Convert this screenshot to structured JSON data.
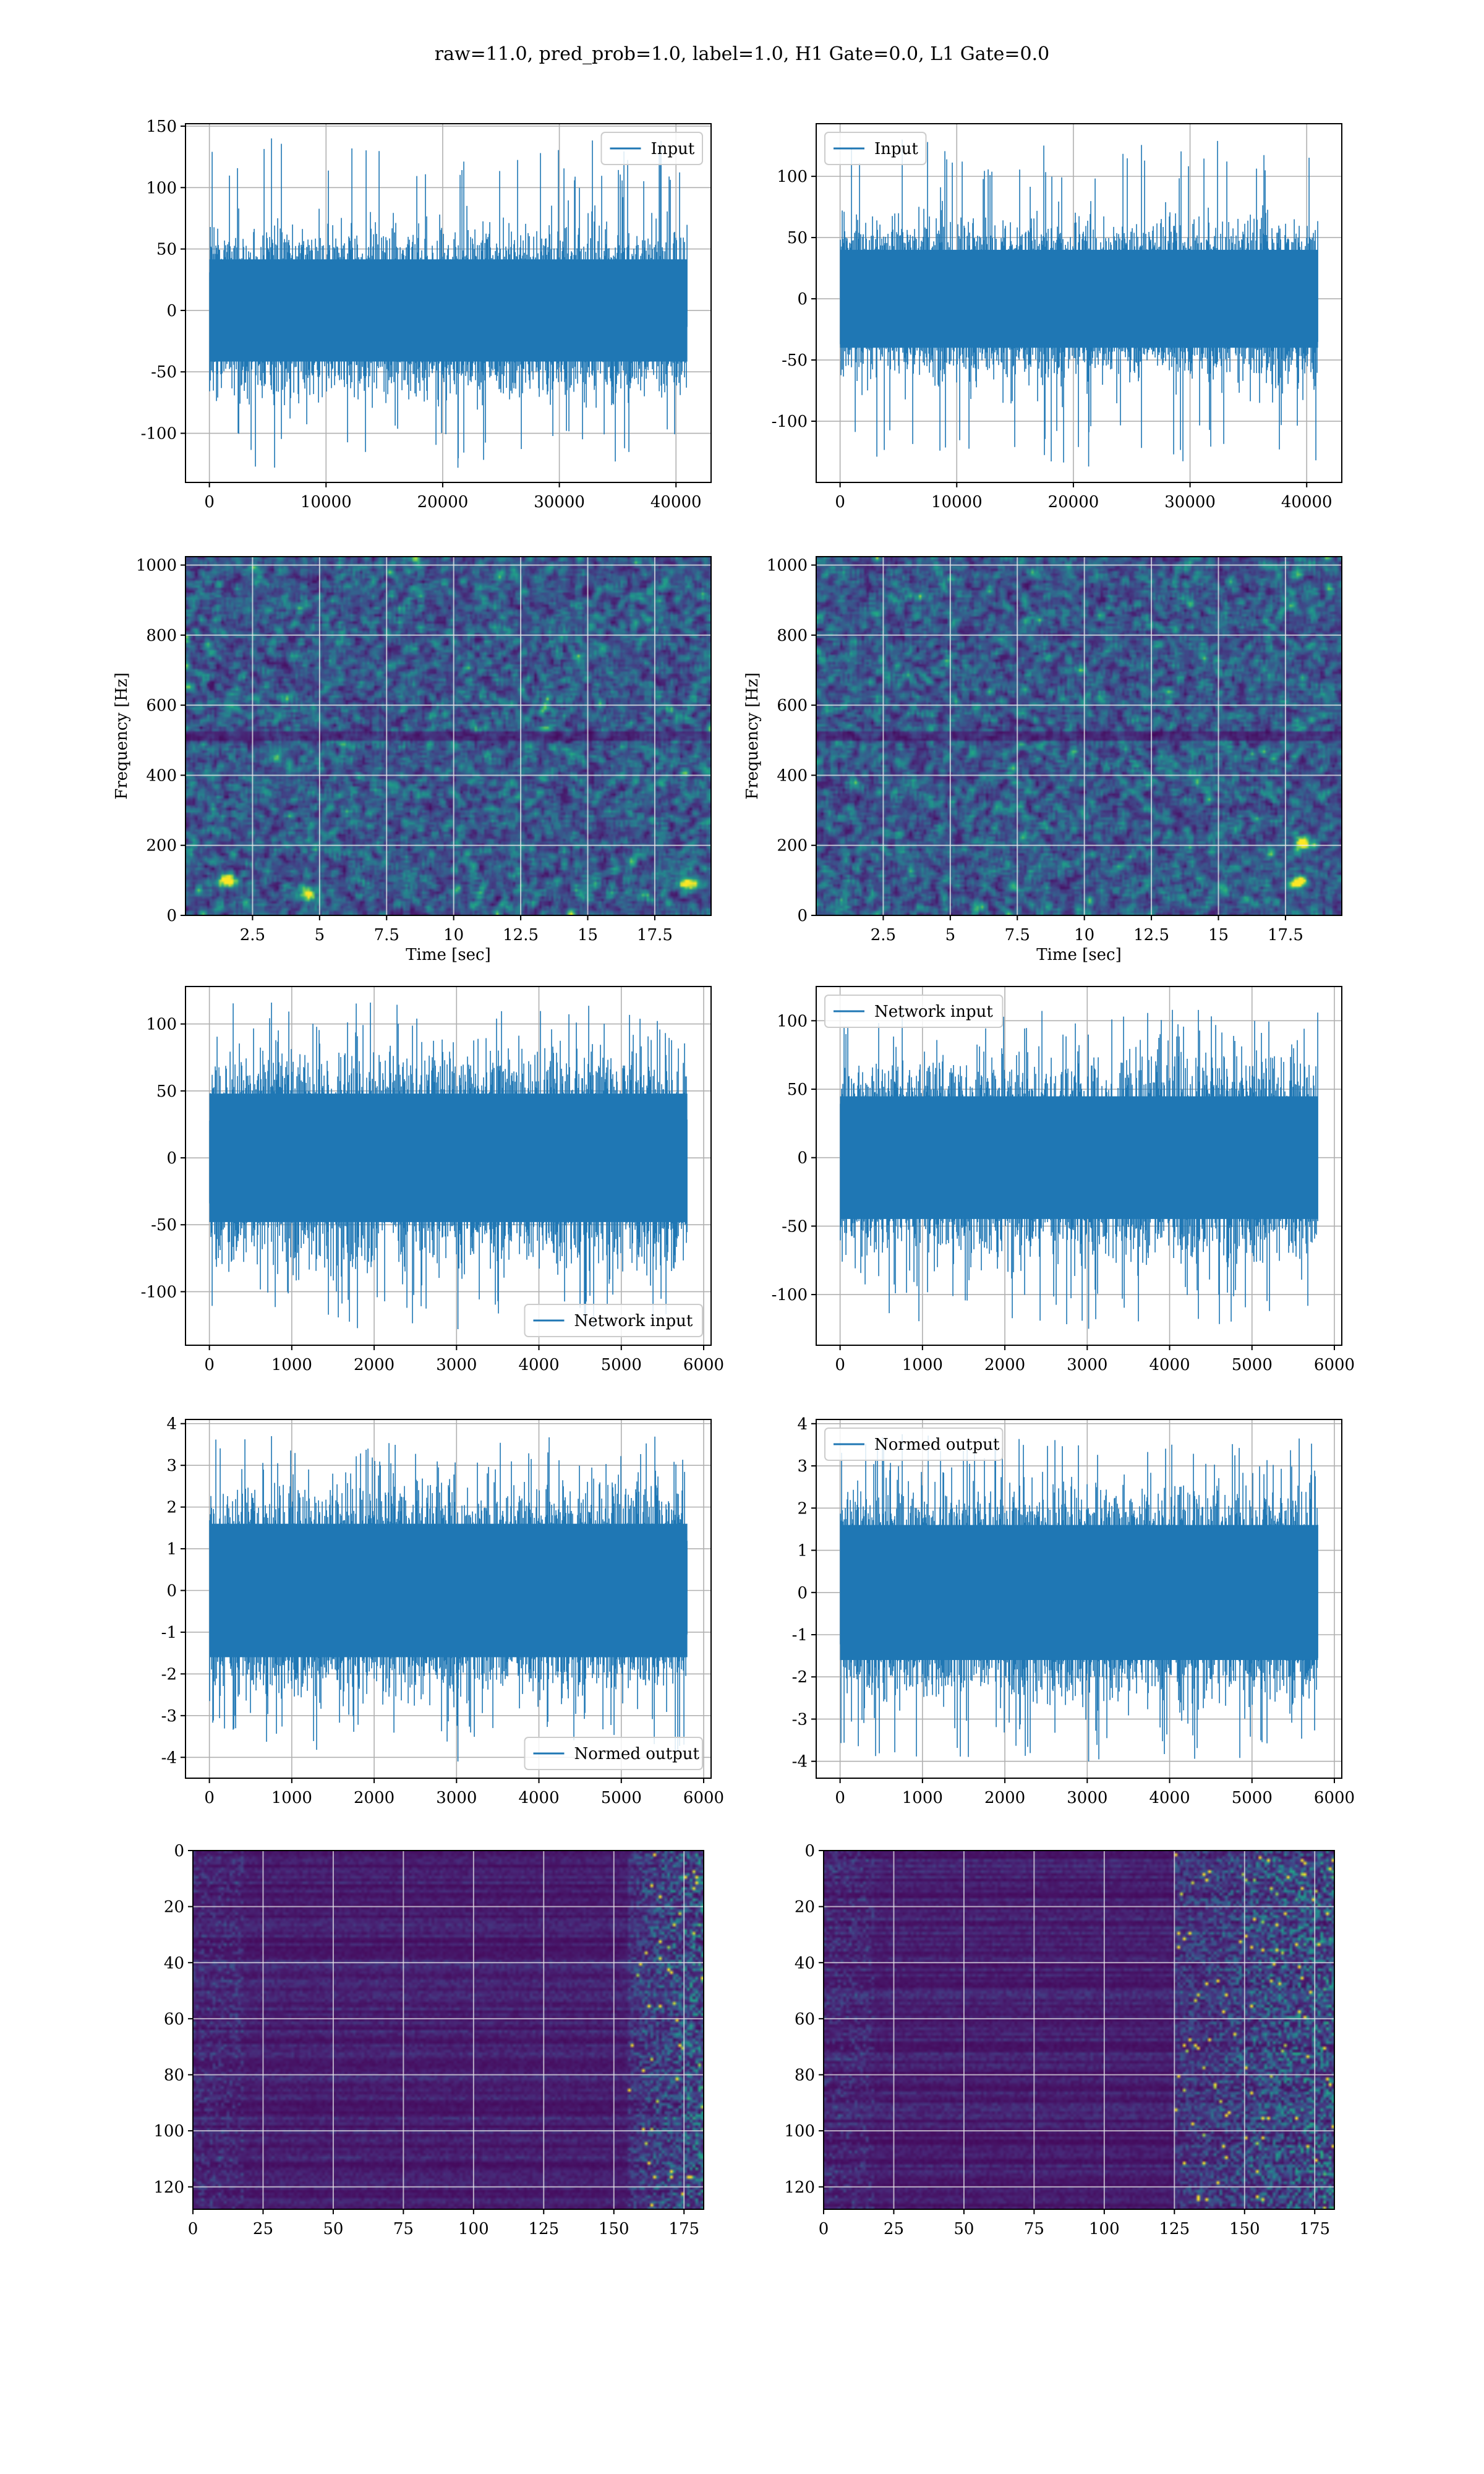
{
  "figure": {
    "suptitle": "raw=11.0, pred_prob=1.0, label=1.0, H1 Gate=0.0, L1 Gate=0.0"
  },
  "chart_data": [
    {
      "id": "input-h1",
      "type": "line",
      "x": [
        0,
        40960
      ],
      "series": [
        {
          "name": "Input",
          "color": "#1f77b4",
          "kind": "noise",
          "n": 40960,
          "sigma": 26,
          "y_min": -128,
          "y_max": 140
        }
      ],
      "xlim": [
        -2048,
        43008
      ],
      "ylim": [
        -140,
        152
      ],
      "xticks": [
        0,
        10000,
        20000,
        30000,
        40000
      ],
      "yticks": [
        -100,
        -50,
        0,
        50,
        100,
        150
      ],
      "legend": "upper right",
      "grid": true
    },
    {
      "id": "input-l1",
      "type": "line",
      "x": [
        0,
        40960
      ],
      "series": [
        {
          "name": "Input",
          "color": "#1f77b4",
          "kind": "noise",
          "n": 40960,
          "sigma": 25,
          "y_min": -137,
          "y_max": 130
        }
      ],
      "xlim": [
        -2048,
        43008
      ],
      "ylim": [
        -150,
        143
      ],
      "xticks": [
        0,
        10000,
        20000,
        30000,
        40000
      ],
      "yticks": [
        -100,
        -50,
        0,
        50,
        100
      ],
      "legend": "upper left",
      "grid": true
    },
    {
      "id": "spectrogram-h1",
      "type": "heatmap",
      "colormap": "viridis",
      "xlim": [
        0,
        19.6
      ],
      "ylim": [
        0,
        1024
      ],
      "xticks": [
        2.5,
        5.0,
        7.5,
        10.0,
        12.5,
        15.0,
        17.5
      ],
      "yticks": [
        0,
        200,
        400,
        600,
        800,
        1000
      ],
      "xlabel": "Time [sec]",
      "ylabel": "Frequency [Hz]",
      "hot_spots": [
        [
          1.5,
          95
        ],
        [
          4.5,
          60
        ],
        [
          18.8,
          90
        ]
      ],
      "grid": true
    },
    {
      "id": "spectrogram-l1",
      "type": "heatmap",
      "colormap": "viridis",
      "xlim": [
        0,
        19.6
      ],
      "ylim": [
        0,
        1024
      ],
      "xticks": [
        2.5,
        5.0,
        7.5,
        10.0,
        12.5,
        15.0,
        17.5
      ],
      "yticks": [
        0,
        200,
        400,
        600,
        800,
        1000
      ],
      "xlabel": "Time [sec]",
      "ylabel": "Frequency [Hz]",
      "hot_spots": [
        [
          18.2,
          200
        ],
        [
          18.0,
          90
        ]
      ],
      "grid": true
    },
    {
      "id": "network-input-h1",
      "type": "line",
      "x": [
        0,
        5800
      ],
      "series": [
        {
          "name": "Network input",
          "color": "#1f77b4",
          "kind": "noise",
          "n": 5800,
          "sigma": 30,
          "y_min": -128,
          "y_max": 116
        }
      ],
      "xlim": [
        -290,
        6090
      ],
      "ylim": [
        -140,
        128
      ],
      "xticks": [
        0,
        1000,
        2000,
        3000,
        4000,
        5000,
        6000
      ],
      "yticks": [
        -100,
        -50,
        0,
        50,
        100
      ],
      "legend": "lower right",
      "grid": true
    },
    {
      "id": "network-input-l1",
      "type": "line",
      "x": [
        0,
        5800
      ],
      "series": [
        {
          "name": "Network input",
          "color": "#1f77b4",
          "kind": "noise",
          "n": 5800,
          "sigma": 28,
          "y_min": -125,
          "y_max": 110
        }
      ],
      "xlim": [
        -290,
        6090
      ],
      "ylim": [
        -137,
        125
      ],
      "xticks": [
        0,
        1000,
        2000,
        3000,
        4000,
        5000,
        6000
      ],
      "yticks": [
        -100,
        -50,
        0,
        50,
        100
      ],
      "legend": "upper left",
      "grid": true
    },
    {
      "id": "normed-output-h1",
      "type": "line",
      "x": [
        0,
        5800
      ],
      "series": [
        {
          "name": "Normed output",
          "color": "#1f77b4",
          "kind": "noise",
          "n": 5800,
          "sigma": 1.0,
          "y_min": -4.1,
          "y_max": 3.7
        }
      ],
      "xlim": [
        -290,
        6090
      ],
      "ylim": [
        -4.5,
        4.1
      ],
      "xticks": [
        0,
        1000,
        2000,
        3000,
        4000,
        5000,
        6000
      ],
      "yticks": [
        -4,
        -3,
        -2,
        -1,
        0,
        1,
        2,
        3,
        4
      ],
      "legend": "lower right",
      "grid": true
    },
    {
      "id": "normed-output-l1",
      "type": "line",
      "x": [
        0,
        5800
      ],
      "series": [
        {
          "name": "Normed output",
          "color": "#1f77b4",
          "kind": "noise",
          "n": 5800,
          "sigma": 1.0,
          "y_min": -4.0,
          "y_max": 3.75
        }
      ],
      "xlim": [
        -290,
        6090
      ],
      "ylim": [
        -4.4,
        4.1
      ],
      "xticks": [
        0,
        1000,
        2000,
        3000,
        4000,
        5000,
        6000
      ],
      "yticks": [
        -4,
        -3,
        -2,
        -1,
        0,
        1,
        2,
        3,
        4
      ],
      "legend": "upper left",
      "grid": true
    },
    {
      "id": "features-h1",
      "type": "heatmap",
      "colormap": "viridis",
      "xlim": [
        0,
        182
      ],
      "ylim": [
        128,
        0
      ],
      "xticks": [
        0,
        25,
        50,
        75,
        100,
        125,
        150,
        175
      ],
      "yticks": [
        0,
        20,
        40,
        60,
        80,
        100,
        120
      ],
      "active_cols": [
        155,
        182
      ],
      "grid": true
    },
    {
      "id": "features-l1",
      "type": "heatmap",
      "colormap": "viridis",
      "xlim": [
        0,
        182
      ],
      "ylim": [
        128,
        0
      ],
      "xticks": [
        0,
        25,
        50,
        75,
        100,
        125,
        150,
        175
      ],
      "yticks": [
        0,
        20,
        40,
        60,
        80,
        100,
        120
      ],
      "active_cols": [
        125,
        182
      ],
      "grid": true
    }
  ]
}
